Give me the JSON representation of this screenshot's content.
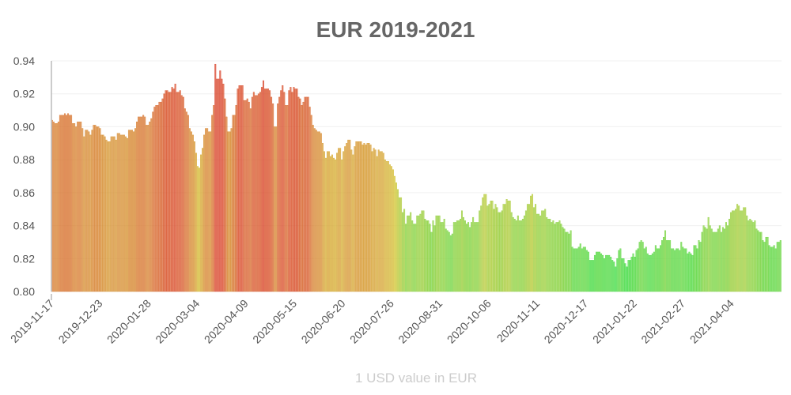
{
  "chart_data": {
    "type": "bar",
    "title": "EUR 2019-2021",
    "xlabel": "1 USD value in EUR",
    "ylabel": "",
    "ylim": [
      0.8,
      0.94
    ],
    "y_ticks": [
      "0.80",
      "0.82",
      "0.84",
      "0.86",
      "0.88",
      "0.90",
      "0.92",
      "0.94"
    ],
    "x_ticks": [
      "2019-11-17",
      "2019-12-23",
      "2020-01-28",
      "2020-03-04",
      "2020-04-09",
      "2020-05-15",
      "2020-06-20",
      "2020-07-26",
      "2020-08-31",
      "2020-10-06",
      "2020-11-11",
      "2020-12-17",
      "2021-01-22",
      "2021-02-27",
      "2021-04-04"
    ],
    "grid": true,
    "legend": "none",
    "color_scale": {
      "low": "#3fdc45",
      "mid": "#d6c73a",
      "high": "#d9432b"
    },
    "values": [
      0.904,
      0.903,
      0.902,
      0.902,
      0.903,
      0.907,
      0.907,
      0.907,
      0.908,
      0.907,
      0.908,
      0.907,
      0.907,
      0.902,
      0.902,
      0.9,
      0.903,
      0.903,
      0.903,
      0.899,
      0.894,
      0.898,
      0.898,
      0.897,
      0.895,
      0.898,
      0.901,
      0.901,
      0.9,
      0.9,
      0.899,
      0.895,
      0.895,
      0.894,
      0.892,
      0.891,
      0.891,
      0.894,
      0.894,
      0.894,
      0.892,
      0.896,
      0.896,
      0.895,
      0.895,
      0.895,
      0.894,
      0.893,
      0.898,
      0.898,
      0.898,
      0.897,
      0.899,
      0.903,
      0.906,
      0.906,
      0.906,
      0.907,
      0.906,
      0.901,
      0.901,
      0.903,
      0.905,
      0.909,
      0.912,
      0.913,
      0.913,
      0.915,
      0.915,
      0.917,
      0.92,
      0.922,
      0.922,
      0.921,
      0.921,
      0.924,
      0.923,
      0.926,
      0.921,
      0.921,
      0.922,
      0.919,
      0.918,
      0.911,
      0.909,
      0.907,
      0.899,
      0.897,
      0.895,
      0.891,
      0.884,
      0.876,
      0.875,
      0.883,
      0.887,
      0.895,
      0.899,
      0.899,
      0.897,
      0.897,
      0.907,
      0.913,
      0.938,
      0.929,
      0.929,
      0.934,
      0.929,
      0.926,
      0.917,
      0.906,
      0.897,
      0.897,
      0.899,
      0.907,
      0.907,
      0.913,
      0.923,
      0.925,
      0.925,
      0.925,
      0.916,
      0.916,
      0.917,
      0.915,
      0.911,
      0.918,
      0.921,
      0.919,
      0.919,
      0.92,
      0.921,
      0.924,
      0.928,
      0.923,
      0.923,
      0.923,
      0.922,
      0.918,
      0.914,
      0.9,
      0.9,
      0.914,
      0.918,
      0.922,
      0.925,
      0.921,
      0.913,
      0.913,
      0.922,
      0.924,
      0.921,
      0.924,
      0.923,
      0.923,
      0.918,
      0.917,
      0.913,
      0.915,
      0.918,
      0.918,
      0.918,
      0.912,
      0.907,
      0.901,
      0.899,
      0.898,
      0.897,
      0.897,
      0.896,
      0.89,
      0.885,
      0.881,
      0.885,
      0.885,
      0.882,
      0.883,
      0.881,
      0.88,
      0.884,
      0.887,
      0.887,
      0.88,
      0.885,
      0.888,
      0.89,
      0.892,
      0.892,
      0.886,
      0.883,
      0.888,
      0.891,
      0.891,
      0.891,
      0.891,
      0.889,
      0.89,
      0.889,
      0.89,
      0.89,
      0.889,
      0.885,
      0.887,
      0.886,
      0.882,
      0.886,
      0.885,
      0.885,
      0.884,
      0.88,
      0.879,
      0.879,
      0.877,
      0.876,
      0.874,
      0.87,
      0.866,
      0.862,
      0.857,
      0.857,
      0.848,
      0.85,
      0.841,
      0.846,
      0.846,
      0.848,
      0.843,
      0.841,
      0.841,
      0.846,
      0.846,
      0.847,
      0.849,
      0.849,
      0.844,
      0.843,
      0.843,
      0.841,
      0.836,
      0.843,
      0.84,
      0.846,
      0.846,
      0.846,
      0.842,
      0.842,
      0.844,
      0.838,
      0.837,
      0.836,
      0.834,
      0.835,
      0.842,
      0.842,
      0.843,
      0.843,
      0.844,
      0.849,
      0.845,
      0.843,
      0.841,
      0.842,
      0.839,
      0.842,
      0.845,
      0.842,
      0.842,
      0.842,
      0.849,
      0.852,
      0.857,
      0.859,
      0.859,
      0.852,
      0.853,
      0.855,
      0.855,
      0.85,
      0.853,
      0.851,
      0.848,
      0.848,
      0.849,
      0.853,
      0.853,
      0.856,
      0.855,
      0.855,
      0.848,
      0.845,
      0.844,
      0.843,
      0.846,
      0.843,
      0.843,
      0.844,
      0.846,
      0.849,
      0.853,
      0.853,
      0.858,
      0.859,
      0.851,
      0.853,
      0.847,
      0.847,
      0.846,
      0.849,
      0.849,
      0.85,
      0.845,
      0.844,
      0.844,
      0.842,
      0.843,
      0.841,
      0.842,
      0.842,
      0.843,
      0.841,
      0.839,
      0.838,
      0.836,
      0.836,
      0.835,
      0.837,
      0.827,
      0.826,
      0.826,
      0.826,
      0.827,
      0.829,
      0.826,
      0.827,
      0.827,
      0.825,
      0.824,
      0.819,
      0.819,
      0.819,
      0.822,
      0.824,
      0.824,
      0.824,
      0.823,
      0.822,
      0.82,
      0.822,
      0.822,
      0.822,
      0.821,
      0.819,
      0.818,
      0.815,
      0.82,
      0.825,
      0.826,
      0.82,
      0.82,
      0.817,
      0.815,
      0.819,
      0.819,
      0.821,
      0.823,
      0.821,
      0.825,
      0.826,
      0.83,
      0.831,
      0.83,
      0.826,
      0.827,
      0.823,
      0.822,
      0.822,
      0.823,
      0.824,
      0.828,
      0.826,
      0.826,
      0.828,
      0.831,
      0.833,
      0.837,
      0.831,
      0.831,
      0.831,
      0.826,
      0.826,
      0.825,
      0.826,
      0.826,
      0.825,
      0.83,
      0.827,
      0.826,
      0.826,
      0.823,
      0.824,
      0.823,
      0.822,
      0.828,
      0.828,
      0.826,
      0.831,
      0.83,
      0.836,
      0.84,
      0.839,
      0.838,
      0.845,
      0.84,
      0.838,
      0.836,
      0.836,
      0.836,
      0.838,
      0.84,
      0.836,
      0.839,
      0.838,
      0.842,
      0.84,
      0.844,
      0.848,
      0.849,
      0.849,
      0.85,
      0.853,
      0.852,
      0.849,
      0.849,
      0.851,
      0.851,
      0.846,
      0.843,
      0.844,
      0.843,
      0.842,
      0.843,
      0.838,
      0.837,
      0.836,
      0.836,
      0.831,
      0.83,
      0.833,
      0.833,
      0.828,
      0.827,
      0.827,
      0.828,
      0.826,
      0.83,
      0.83,
      0.831
    ]
  }
}
